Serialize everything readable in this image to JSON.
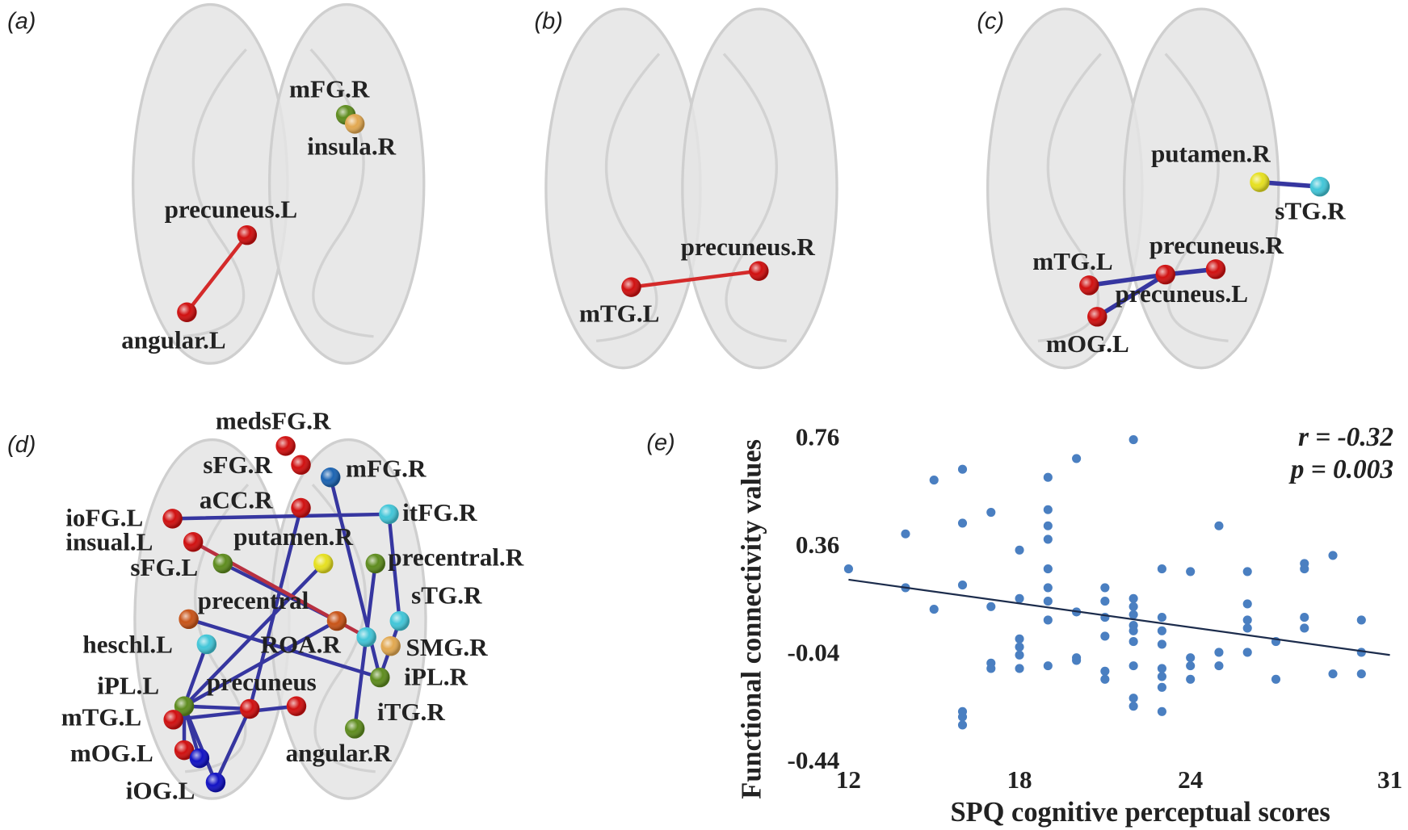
{
  "panels": [
    {
      "label": "(a)",
      "nodes": [
        "mFG.R",
        "insula.R",
        "precuneus.L",
        "angular.L"
      ]
    },
    {
      "label": "(b)",
      "nodes": [
        "precuneus.R",
        "mTG.L"
      ]
    },
    {
      "label": "(c)",
      "nodes": [
        "putamen.R",
        "sTG.R",
        "precuneus.R",
        "mTG.L",
        "precuneus.L",
        "mOG.L"
      ]
    },
    {
      "label": "(d)",
      "nodes": [
        "medsFG.R",
        "sFG.R",
        "mFG.R",
        "aCC.R",
        "ioFG.L",
        "itFG.R",
        "insual.L",
        "putamen.R",
        "sFG.L",
        "precentral.R",
        "precentral",
        "sTG.R",
        "ROA.R",
        "heschl.L",
        "SMG.R",
        "iPL.R",
        "iPL.L",
        "precuneus",
        "mTG.L",
        "iTG.R",
        "angular.R",
        "mOG.L",
        "iOG.L"
      ]
    }
  ],
  "chart_data": {
    "type": "scatter",
    "panel_label": "(e)",
    "xlabel": "SPQ cognitive perceptual scores",
    "ylabel": "Functional connectivity values",
    "annotations": [
      "r = -0.32",
      "p = 0.003"
    ],
    "x": [
      12,
      14,
      14,
      15,
      15,
      16,
      16,
      16,
      16,
      16,
      16,
      17,
      17,
      17,
      17,
      18,
      18,
      18,
      18,
      18,
      18,
      19,
      19,
      19,
      19,
      19,
      19,
      19,
      19,
      19,
      20,
      20,
      20,
      20,
      21,
      21,
      21,
      21,
      21,
      21,
      22,
      22,
      22,
      22,
      22,
      22,
      22,
      22,
      22,
      22,
      23,
      23,
      23,
      23,
      23,
      23,
      23,
      23,
      24,
      24,
      24,
      24,
      25,
      25,
      25,
      26,
      26,
      26,
      26,
      26,
      27,
      27,
      28,
      28,
      28,
      28,
      29,
      29,
      30,
      30,
      30
    ],
    "values": [
      0.28,
      0.41,
      0.21,
      0.61,
      0.13,
      0.65,
      0.45,
      0.22,
      -0.25,
      -0.27,
      -0.3,
      0.49,
      0.14,
      -0.07,
      -0.09,
      0.35,
      0.17,
      0.02,
      -0.01,
      -0.04,
      -0.09,
      0.62,
      0.5,
      0.44,
      0.39,
      0.28,
      0.21,
      0.16,
      0.09,
      -0.08,
      0.69,
      0.12,
      -0.05,
      -0.06,
      0.21,
      0.16,
      0.1,
      0.03,
      -0.1,
      -0.13,
      0.76,
      0.17,
      0.14,
      0.11,
      0.07,
      0.05,
      0.01,
      -0.08,
      -0.2,
      -0.23,
      0.28,
      0.1,
      0.05,
      0.0,
      -0.09,
      -0.12,
      -0.16,
      -0.25,
      0.27,
      -0.05,
      -0.08,
      -0.13,
      0.44,
      -0.03,
      -0.08,
      0.27,
      0.15,
      0.09,
      0.06,
      -0.03,
      0.01,
      -0.13,
      0.3,
      0.28,
      0.1,
      0.06,
      0.33,
      -0.11,
      0.09,
      -0.03,
      -0.11
    ],
    "color": "#4a7fc1",
    "fit_line": {
      "x": [
        12,
        31
      ],
      "values": [
        0.24,
        -0.04
      ],
      "color": "#1c2c4c"
    },
    "xlim": [
      12,
      31
    ],
    "xticks": [
      12,
      18,
      24,
      31
    ],
    "ylim": [
      -0.44,
      0.76
    ],
    "yticks": [
      0.76,
      0.36,
      -0.04,
      -0.44
    ]
  }
}
